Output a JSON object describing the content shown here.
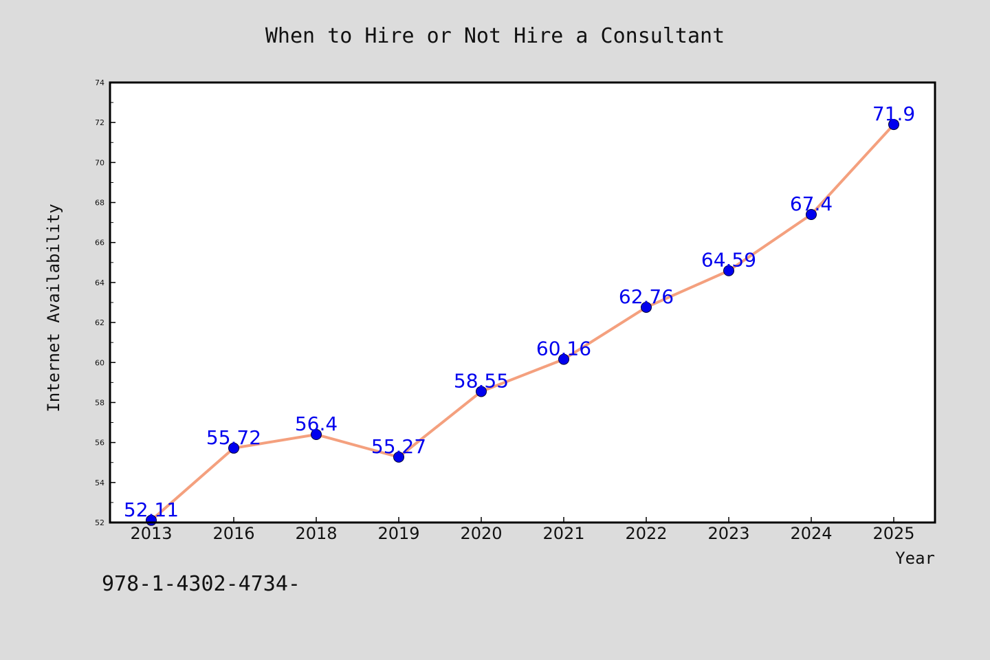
{
  "chart_data": {
    "type": "line",
    "title": "When to Hire or Not Hire a Consultant",
    "xlabel": "Year",
    "ylabel": "Internet Availability",
    "categories": [
      "2013",
      "2016",
      "2018",
      "2019",
      "2020",
      "2021",
      "2022",
      "2023",
      "2024",
      "2025"
    ],
    "series": [
      {
        "values": [
          52.11,
          55.72,
          56.4,
          55.27,
          58.55,
          60.16,
          62.76,
          64.59,
          67.4,
          71.9
        ],
        "labels": [
          "52.11",
          "55.72",
          "56.4",
          "55.27",
          "58.55",
          "60.16",
          "62.76",
          "64.59",
          "67.4",
          "71.9"
        ]
      }
    ],
    "ylim": [
      52,
      74
    ],
    "yticks": [
      "52",
      "54",
      "56",
      "58",
      "60",
      "62",
      "64",
      "66",
      "68",
      "70",
      "72",
      "74"
    ],
    "grid": false,
    "line_color": "#f4a07e",
    "marker_color": "#0000ee",
    "label_color": "#0000ee"
  },
  "footer_text": "978-1-4302-4734-"
}
